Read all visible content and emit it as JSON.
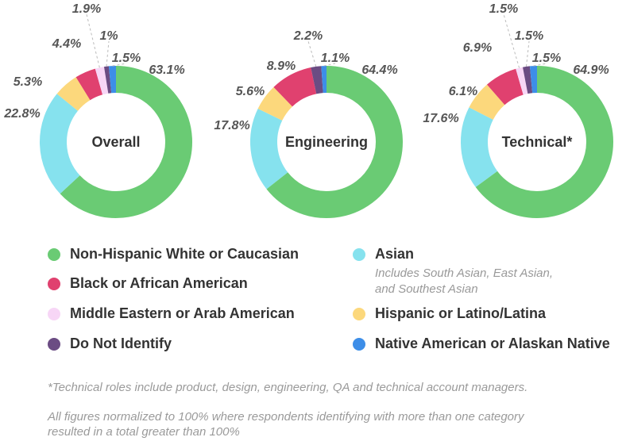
{
  "chart_data": [
    {
      "type": "pie",
      "title": "Overall",
      "slices": [
        {
          "category": "Non-Hispanic White or Caucasian",
          "value": 63.1,
          "label": "63.1%"
        },
        {
          "category": "Asian",
          "value": 22.8,
          "label": "22.8%"
        },
        {
          "category": "Hispanic or Latino/Latina",
          "value": 5.3,
          "label": "5.3%"
        },
        {
          "category": "Black or African American",
          "value": 4.4,
          "label": "4.4%"
        },
        {
          "category": "Middle Eastern or Arab American",
          "value": 1.9,
          "label": "1.9%"
        },
        {
          "category": "Do Not Identify",
          "value": 1.0,
          "label": "1%"
        },
        {
          "category": "Native American or Alaskan Native",
          "value": 1.5,
          "label": "1.5%"
        }
      ]
    },
    {
      "type": "pie",
      "title": "Engineering",
      "slices": [
        {
          "category": "Non-Hispanic White or Caucasian",
          "value": 64.4,
          "label": "64.4%"
        },
        {
          "category": "Asian",
          "value": 17.8,
          "label": "17.8%"
        },
        {
          "category": "Hispanic or Latino/Latina",
          "value": 5.6,
          "label": "5.6%"
        },
        {
          "category": "Black or African American",
          "value": 8.9,
          "label": "8.9%"
        },
        {
          "category": "Do Not Identify",
          "value": 2.2,
          "label": "2.2%"
        },
        {
          "category": "Native American or Alaskan Native",
          "value": 1.1,
          "label": "1.1%"
        }
      ]
    },
    {
      "type": "pie",
      "title": "Technical*",
      "slices": [
        {
          "category": "Non-Hispanic White or Caucasian",
          "value": 64.9,
          "label": "64.9%"
        },
        {
          "category": "Asian",
          "value": 17.6,
          "label": "17.6%"
        },
        {
          "category": "Hispanic or Latino/Latina",
          "value": 6.1,
          "label": "6.1%"
        },
        {
          "category": "Black or African American",
          "value": 6.9,
          "label": "6.9%"
        },
        {
          "category": "Middle Eastern or Arab American",
          "value": 1.5,
          "label": "1.5%"
        },
        {
          "category": "Do Not Identify",
          "value": 1.5,
          "label": "1.5%"
        },
        {
          "category": "Native American or Alaskan Native",
          "value": 1.5,
          "label": "1.5%"
        }
      ]
    }
  ],
  "colors": {
    "Non-Hispanic White or Caucasian": "#6acb74",
    "Asian": "#86e2ee",
    "Hispanic or Latino/Latina": "#fcd87c",
    "Black or African American": "#e0416f",
    "Middle Eastern or Arab American": "#f7d6f6",
    "Do Not Identify": "#6b4c83",
    "Native American or Alaskan Native": "#3d8ee8",
    "leader_line": "#bbbbbb"
  },
  "legend": [
    {
      "label": "Non-Hispanic White or Caucasian",
      "color": "#6acb74"
    },
    {
      "label": "Asian",
      "color": "#86e2ee",
      "note": [
        "Includes South Asian, East Asian,",
        "and Southest Asian"
      ]
    },
    {
      "label": "Black or African American",
      "color": "#e0416f"
    },
    {
      "label": "Middle Eastern or Arab American",
      "color": "#f7d6f6"
    },
    {
      "label": "Hispanic or Latino/Latina",
      "color": "#fcd87c"
    },
    {
      "label": "Do Not Identify",
      "color": "#6b4c83"
    },
    {
      "label": "Native American or Alaskan Native",
      "color": "#3d8ee8"
    }
  ],
  "footnotes": {
    "technical": "*Technical roles include product, design, engineering, QA and technical account managers.",
    "normalized": [
      "All figures normalized to 100% where respondents identifying with more than one category",
      "resulted in a total greater than 100%"
    ]
  }
}
